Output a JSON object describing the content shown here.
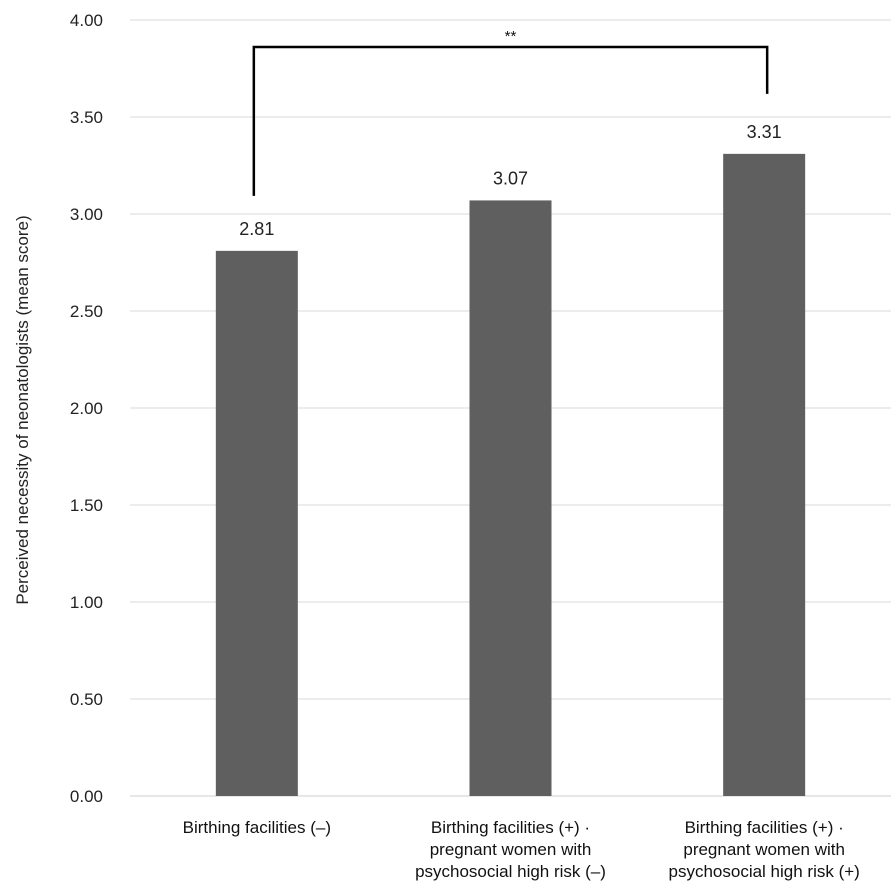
{
  "chart_data": {
    "type": "bar",
    "ylabel": "Perceived necessity of neonatologists (mean score)",
    "xlabel": "",
    "ylim": [
      0,
      4
    ],
    "yticks": [
      "0.00",
      "0.50",
      "1.00",
      "1.50",
      "2.00",
      "2.50",
      "3.00",
      "3.50",
      "4.00"
    ],
    "grid": true,
    "categories": [
      [
        "Birthing facilities (–)"
      ],
      [
        "Birthing facilities (+) ·",
        "pregnant women with",
        "psychosocial high risk (–)"
      ],
      [
        "Birthing facilities (+) ·",
        "pregnant women with",
        "psychosocial high risk (+)"
      ]
    ],
    "values": [
      2.81,
      3.07,
      3.31
    ],
    "data_labels": [
      "2.81",
      "3.07",
      "3.31"
    ],
    "bar_color": "#5f5f5f",
    "significance": {
      "from": 0,
      "to": 2,
      "label": "**",
      "y": 3.99
    }
  }
}
